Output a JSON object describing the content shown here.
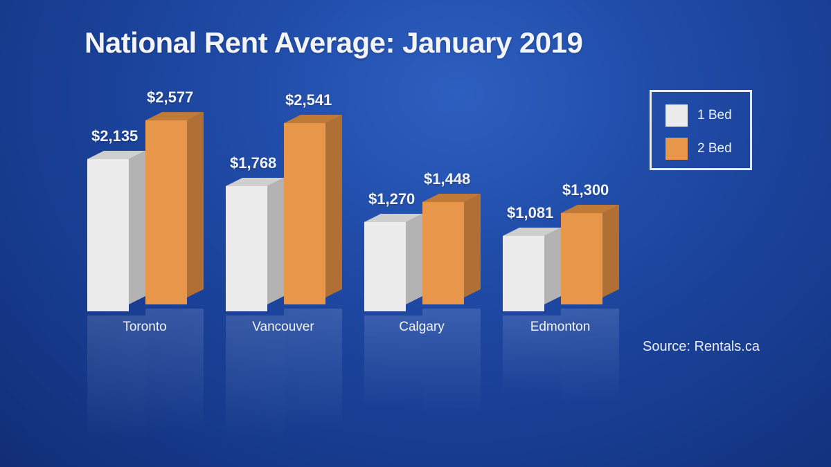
{
  "title": "National Rent Average: January 2019",
  "legend": [
    {
      "label": "1 Bed",
      "color": "#ececec"
    },
    {
      "label": "2 Bed",
      "color": "#e8964a"
    }
  ],
  "source": "Source: Rentals.ca",
  "cities": [
    {
      "name": "Toronto",
      "one_bed": "$2,135",
      "two_bed": "$2,577"
    },
    {
      "name": "Vancouver",
      "one_bed": "$1,768",
      "two_bed": "$2,541"
    },
    {
      "name": "Calgary",
      "one_bed": "$1,270",
      "two_bed": "$1,448"
    },
    {
      "name": "Edmonton",
      "one_bed": "$1,081",
      "two_bed": "$1,300"
    }
  ],
  "colors": {
    "background": "#1f4aa6",
    "one_bed_front": "#ececec",
    "one_bed_side": "#b3b3b3",
    "two_bed_front": "#e8964a",
    "two_bed_side": "#b06f34"
  },
  "chart_data": {
    "type": "bar",
    "title": "National Rent Average: January 2019",
    "categories": [
      "Toronto",
      "Vancouver",
      "Calgary",
      "Edmonton"
    ],
    "series": [
      {
        "name": "1 Bed",
        "values": [
          2135,
          1768,
          1270,
          1081
        ]
      },
      {
        "name": "2 Bed",
        "values": [
          2577,
          2541,
          1448,
          1300
        ]
      }
    ],
    "xlabel": "",
    "ylabel": "",
    "legend_position": "top-right",
    "grid": false,
    "annotation": "Source: Rentals.ca"
  }
}
